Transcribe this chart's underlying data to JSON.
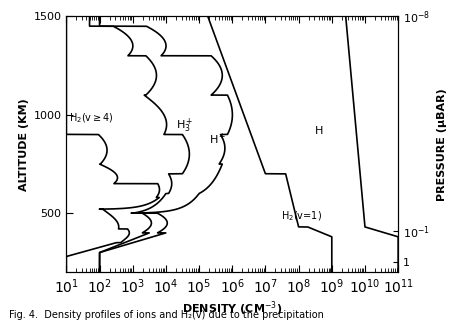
{
  "xlabel": "DENSITY (CM$^{-3}$)",
  "ylabel": "ALTITUDE (KM)",
  "ylabel_right": "PRESSURE (μBAR)",
  "line_color": "#000000",
  "caption": "Fig. 4.  Density profiles of ions and H₂(v) due to the precipitation"
}
